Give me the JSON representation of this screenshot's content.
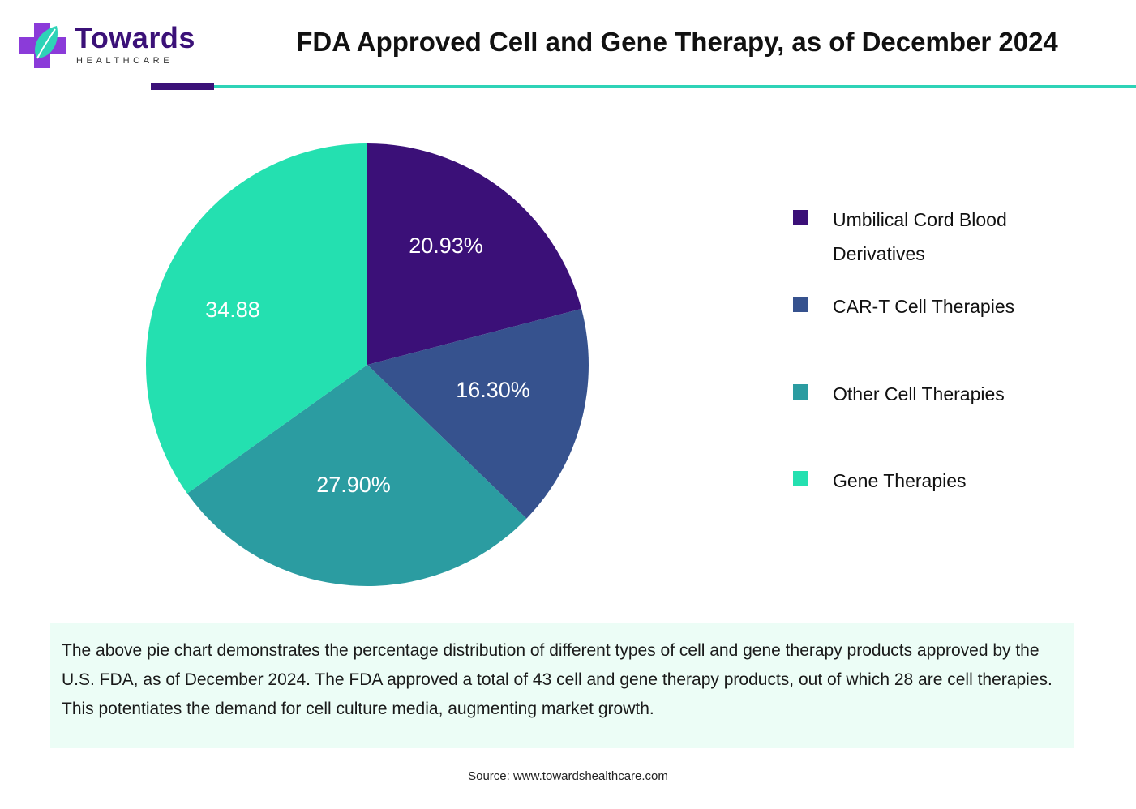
{
  "brand": {
    "name": "Towards",
    "tagline": "HEALTHCARE",
    "primary_color": "#3b1178",
    "accent_color": "#2ed3b7",
    "logo_icon": "medical-cross-leaf-icon"
  },
  "title": "FDA Approved Cell and Gene Therapy, as of December 2024",
  "chart_data": {
    "type": "pie",
    "title": "FDA Approved Cell and Gene Therapy, as of December 2024",
    "slices": [
      {
        "name": "Umbilical Cord Blood Derivatives",
        "name_lines": [
          "Umbilical Cord Blood",
          "Derivatives"
        ],
        "value": 20.93,
        "label": "20.93%",
        "color": "#3b1078"
      },
      {
        "name": "CAR-T Cell Therapies",
        "name_lines": [
          "CAR-T Cell Therapies"
        ],
        "value": 16.3,
        "label": "16.30%",
        "color": "#36528e"
      },
      {
        "name": "Other Cell Therapies",
        "name_lines": [
          "Other Cell Therapies"
        ],
        "value": 27.9,
        "label": "27.90%",
        "color": "#2b9ca1"
      },
      {
        "name": "Gene Therapies",
        "name_lines": [
          "Gene Therapies"
        ],
        "value": 34.88,
        "label": "34.88",
        "color": "#24e0b0"
      }
    ],
    "legend_position": "right"
  },
  "description": "The above pie chart demonstrates the percentage distribution of different types of cell and gene therapy products approved by the U.S. FDA, as of December 2024. The FDA approved a total of 43 cell and gene therapy products, out of which 28 are cell therapies. This potentiates the demand for cell culture media, augmenting market growth.",
  "source": "Source: www.towardshealthcare.com"
}
